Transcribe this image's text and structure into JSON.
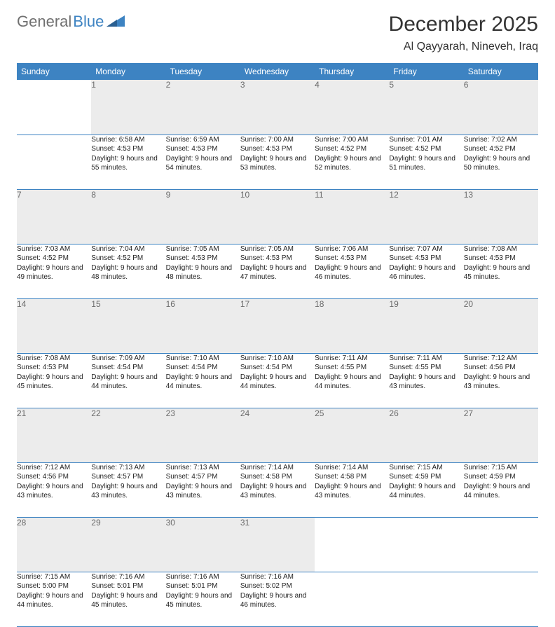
{
  "brand": {
    "part1": "General",
    "part2": "Blue",
    "color_gray": "#707070",
    "color_blue": "#3d83c2"
  },
  "title": "December 2025",
  "location": "Al Qayyarah, Nineveh, Iraq",
  "colors": {
    "header_bg": "#3d83c2",
    "header_fg": "#ffffff",
    "daynum_bg": "#ececec",
    "daynum_fg": "#6b6b6b",
    "text": "#222222",
    "rule": "#3d83c2",
    "page_bg": "#ffffff"
  },
  "fonts": {
    "title_size": 30,
    "location_size": 16,
    "th_size": 12,
    "daynum_size": 12,
    "body_size": 10
  },
  "weekdays": [
    "Sunday",
    "Monday",
    "Tuesday",
    "Wednesday",
    "Thursday",
    "Friday",
    "Saturday"
  ],
  "weeks": [
    [
      null,
      {
        "n": "1",
        "sr": "6:58 AM",
        "ss": "4:53 PM",
        "dl": "9 hours and 55 minutes."
      },
      {
        "n": "2",
        "sr": "6:59 AM",
        "ss": "4:53 PM",
        "dl": "9 hours and 54 minutes."
      },
      {
        "n": "3",
        "sr": "7:00 AM",
        "ss": "4:53 PM",
        "dl": "9 hours and 53 minutes."
      },
      {
        "n": "4",
        "sr": "7:00 AM",
        "ss": "4:52 PM",
        "dl": "9 hours and 52 minutes."
      },
      {
        "n": "5",
        "sr": "7:01 AM",
        "ss": "4:52 PM",
        "dl": "9 hours and 51 minutes."
      },
      {
        "n": "6",
        "sr": "7:02 AM",
        "ss": "4:52 PM",
        "dl": "9 hours and 50 minutes."
      }
    ],
    [
      {
        "n": "7",
        "sr": "7:03 AM",
        "ss": "4:52 PM",
        "dl": "9 hours and 49 minutes."
      },
      {
        "n": "8",
        "sr": "7:04 AM",
        "ss": "4:52 PM",
        "dl": "9 hours and 48 minutes."
      },
      {
        "n": "9",
        "sr": "7:05 AM",
        "ss": "4:53 PM",
        "dl": "9 hours and 48 minutes."
      },
      {
        "n": "10",
        "sr": "7:05 AM",
        "ss": "4:53 PM",
        "dl": "9 hours and 47 minutes."
      },
      {
        "n": "11",
        "sr": "7:06 AM",
        "ss": "4:53 PM",
        "dl": "9 hours and 46 minutes."
      },
      {
        "n": "12",
        "sr": "7:07 AM",
        "ss": "4:53 PM",
        "dl": "9 hours and 46 minutes."
      },
      {
        "n": "13",
        "sr": "7:08 AM",
        "ss": "4:53 PM",
        "dl": "9 hours and 45 minutes."
      }
    ],
    [
      {
        "n": "14",
        "sr": "7:08 AM",
        "ss": "4:53 PM",
        "dl": "9 hours and 45 minutes."
      },
      {
        "n": "15",
        "sr": "7:09 AM",
        "ss": "4:54 PM",
        "dl": "9 hours and 44 minutes."
      },
      {
        "n": "16",
        "sr": "7:10 AM",
        "ss": "4:54 PM",
        "dl": "9 hours and 44 minutes."
      },
      {
        "n": "17",
        "sr": "7:10 AM",
        "ss": "4:54 PM",
        "dl": "9 hours and 44 minutes."
      },
      {
        "n": "18",
        "sr": "7:11 AM",
        "ss": "4:55 PM",
        "dl": "9 hours and 44 minutes."
      },
      {
        "n": "19",
        "sr": "7:11 AM",
        "ss": "4:55 PM",
        "dl": "9 hours and 43 minutes."
      },
      {
        "n": "20",
        "sr": "7:12 AM",
        "ss": "4:56 PM",
        "dl": "9 hours and 43 minutes."
      }
    ],
    [
      {
        "n": "21",
        "sr": "7:12 AM",
        "ss": "4:56 PM",
        "dl": "9 hours and 43 minutes."
      },
      {
        "n": "22",
        "sr": "7:13 AM",
        "ss": "4:57 PM",
        "dl": "9 hours and 43 minutes."
      },
      {
        "n": "23",
        "sr": "7:13 AM",
        "ss": "4:57 PM",
        "dl": "9 hours and 43 minutes."
      },
      {
        "n": "24",
        "sr": "7:14 AM",
        "ss": "4:58 PM",
        "dl": "9 hours and 43 minutes."
      },
      {
        "n": "25",
        "sr": "7:14 AM",
        "ss": "4:58 PM",
        "dl": "9 hours and 43 minutes."
      },
      {
        "n": "26",
        "sr": "7:15 AM",
        "ss": "4:59 PM",
        "dl": "9 hours and 44 minutes."
      },
      {
        "n": "27",
        "sr": "7:15 AM",
        "ss": "4:59 PM",
        "dl": "9 hours and 44 minutes."
      }
    ],
    [
      {
        "n": "28",
        "sr": "7:15 AM",
        "ss": "5:00 PM",
        "dl": "9 hours and 44 minutes."
      },
      {
        "n": "29",
        "sr": "7:16 AM",
        "ss": "5:01 PM",
        "dl": "9 hours and 45 minutes."
      },
      {
        "n": "30",
        "sr": "7:16 AM",
        "ss": "5:01 PM",
        "dl": "9 hours and 45 minutes."
      },
      {
        "n": "31",
        "sr": "7:16 AM",
        "ss": "5:02 PM",
        "dl": "9 hours and 46 minutes."
      },
      null,
      null,
      null
    ]
  ],
  "labels": {
    "sunrise": "Sunrise:",
    "sunset": "Sunset:",
    "daylight": "Daylight:"
  }
}
